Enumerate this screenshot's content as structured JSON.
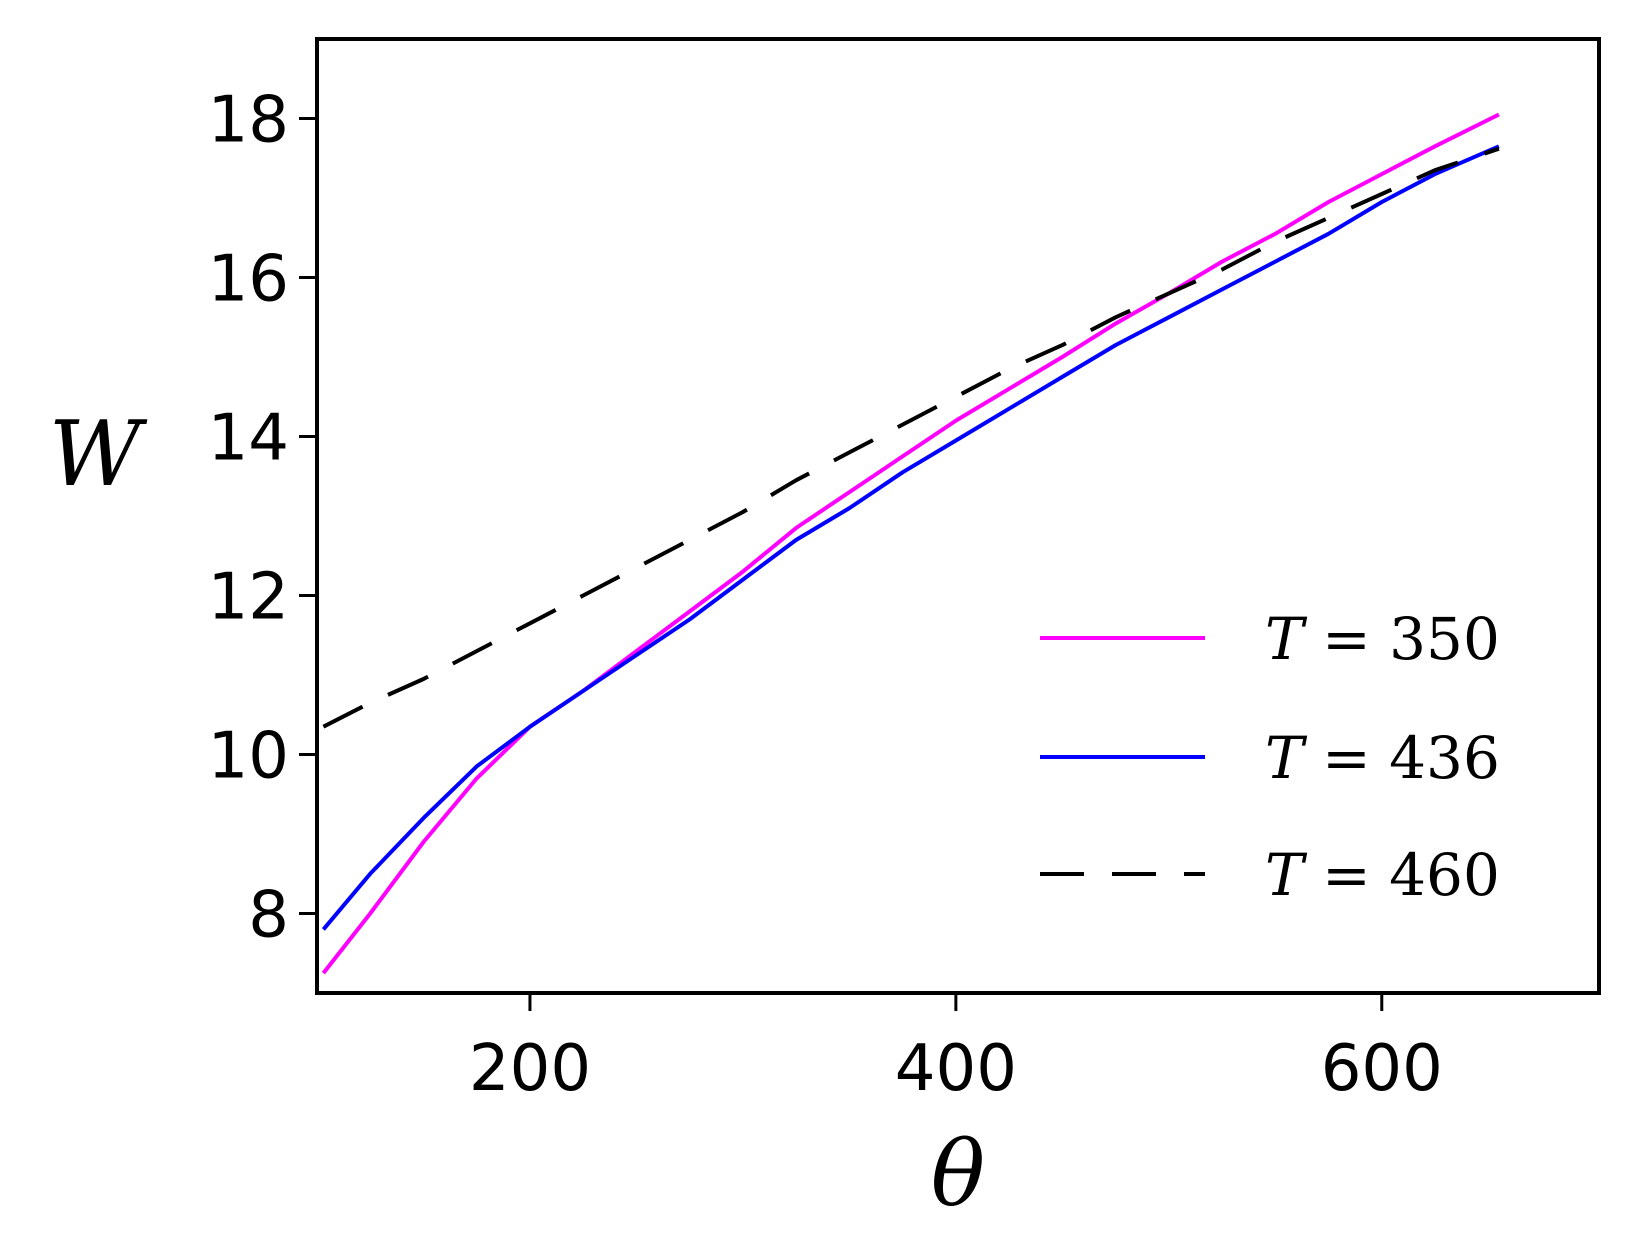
{
  "chart_data": {
    "type": "line",
    "xlabel": "θ",
    "ylabel": "W",
    "xlim": [
      100,
      702
    ],
    "ylim": [
      7,
      19
    ],
    "xticks": [
      200,
      400,
      600
    ],
    "yticks": [
      8,
      10,
      12,
      14,
      16,
      18
    ],
    "xtick_labels": [
      "200",
      "400",
      "600"
    ],
    "ytick_labels": [
      "8",
      "10",
      "12",
      "14",
      "16",
      "18"
    ],
    "legend_position": "lower-right",
    "grid": false,
    "series": [
      {
        "name": "T = 350",
        "legend_var": "T",
        "legend_value": "= 350",
        "color": "#ff00ff",
        "dash": "solid",
        "points": [
          [
            103,
            7.25
          ],
          [
            125,
            8.0
          ],
          [
            150,
            8.9
          ],
          [
            175,
            9.7
          ],
          [
            200,
            10.35
          ],
          [
            225,
            10.8
          ],
          [
            250,
            11.3
          ],
          [
            275,
            11.8
          ],
          [
            300,
            12.3
          ],
          [
            325,
            12.85
          ],
          [
            350,
            13.3
          ],
          [
            375,
            13.75
          ],
          [
            400,
            14.2
          ],
          [
            425,
            14.6
          ],
          [
            450,
            15.0
          ],
          [
            475,
            15.42
          ],
          [
            500,
            15.8
          ],
          [
            525,
            16.2
          ],
          [
            550,
            16.55
          ],
          [
            575,
            16.95
          ],
          [
            600,
            17.3
          ],
          [
            625,
            17.65
          ],
          [
            655,
            18.05
          ]
        ]
      },
      {
        "name": "T = 436",
        "legend_var": "T",
        "legend_value": "= 436",
        "color": "#0000ff",
        "dash": "solid",
        "points": [
          [
            103,
            7.8
          ],
          [
            125,
            8.5
          ],
          [
            150,
            9.2
          ],
          [
            175,
            9.85
          ],
          [
            200,
            10.35
          ],
          [
            225,
            10.8
          ],
          [
            250,
            11.25
          ],
          [
            275,
            11.7
          ],
          [
            300,
            12.2
          ],
          [
            325,
            12.7
          ],
          [
            350,
            13.1
          ],
          [
            375,
            13.55
          ],
          [
            400,
            13.95
          ],
          [
            425,
            14.35
          ],
          [
            450,
            14.75
          ],
          [
            475,
            15.15
          ],
          [
            500,
            15.5
          ],
          [
            525,
            15.85
          ],
          [
            550,
            16.2
          ],
          [
            575,
            16.55
          ],
          [
            600,
            16.95
          ],
          [
            625,
            17.3
          ],
          [
            655,
            17.65
          ]
        ]
      },
      {
        "name": "T = 460",
        "legend_var": "T",
        "legend_value": "= 460",
        "color": "#000000",
        "dash": "long-dash",
        "points": [
          [
            103,
            10.35
          ],
          [
            125,
            10.65
          ],
          [
            150,
            10.95
          ],
          [
            175,
            11.3
          ],
          [
            200,
            11.65
          ],
          [
            225,
            12.0
          ],
          [
            250,
            12.35
          ],
          [
            275,
            12.7
          ],
          [
            300,
            13.05
          ],
          [
            325,
            13.45
          ],
          [
            350,
            13.8
          ],
          [
            375,
            14.15
          ],
          [
            400,
            14.5
          ],
          [
            425,
            14.85
          ],
          [
            450,
            15.15
          ],
          [
            475,
            15.5
          ],
          [
            500,
            15.8
          ],
          [
            525,
            16.1
          ],
          [
            550,
            16.45
          ],
          [
            575,
            16.75
          ],
          [
            600,
            17.05
          ],
          [
            625,
            17.35
          ],
          [
            655,
            17.62
          ]
        ]
      }
    ]
  }
}
